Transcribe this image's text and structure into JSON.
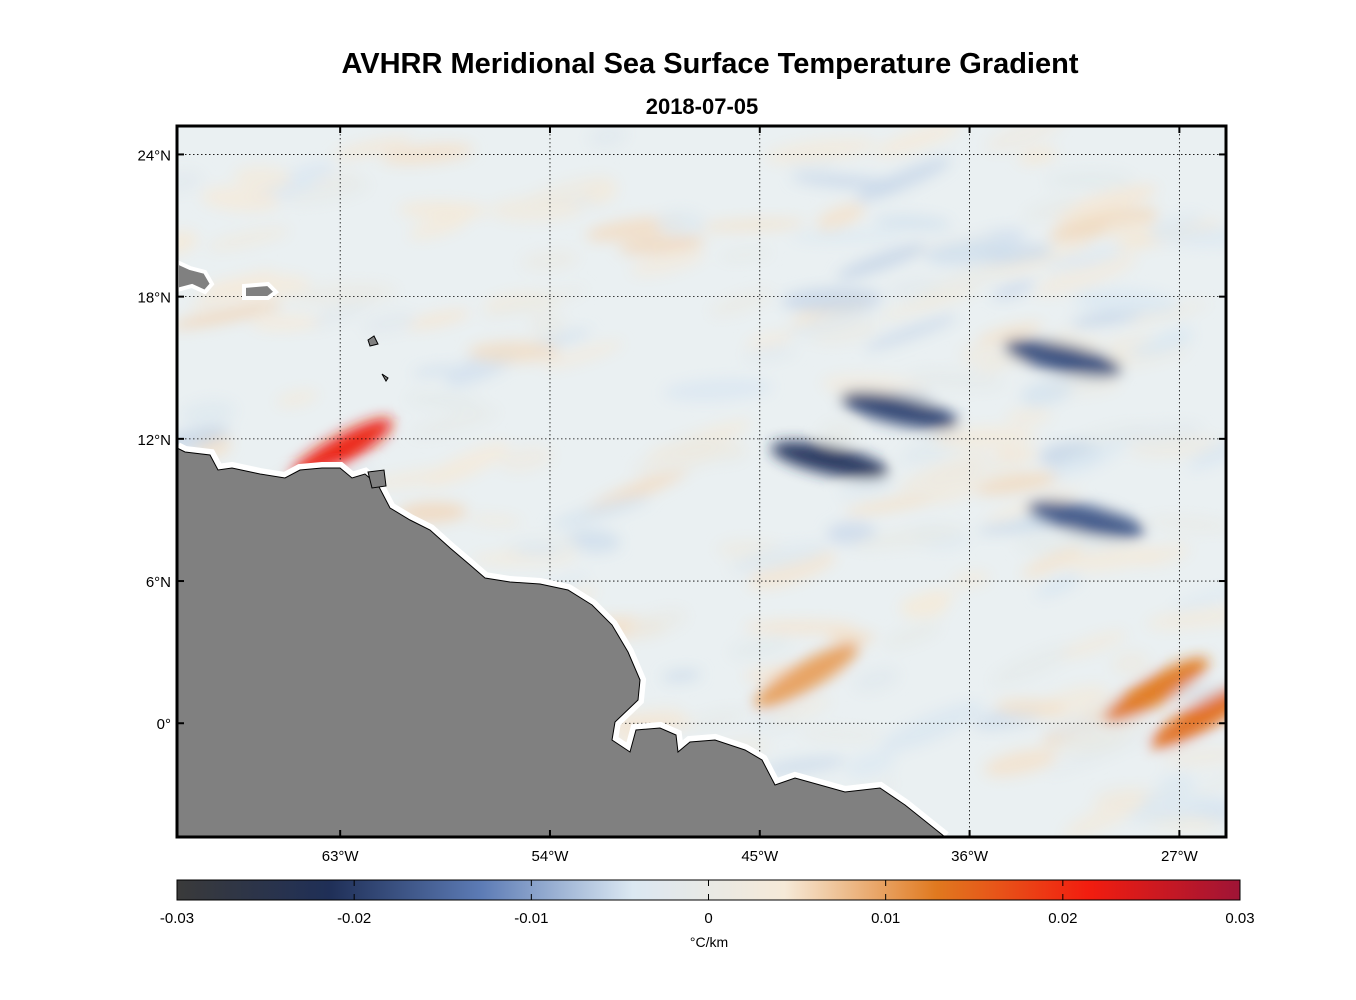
{
  "chart_data": {
    "type": "heatmap",
    "title": "AVHRR Meridional Sea Surface Temperature Gradient",
    "subtitle": "2018-07-05",
    "x_axis": {
      "ticks": [
        -63,
        -54,
        -45,
        -36,
        -27
      ],
      "tick_labels": [
        "63°W",
        "54°W",
        "45°W",
        "36°W",
        "27°W"
      ],
      "range": [
        -70,
        -25
      ]
    },
    "y_axis": {
      "ticks": [
        24,
        18,
        12,
        6,
        0
      ],
      "tick_labels": [
        "24°N",
        "18°N",
        "12°N",
        "6°N",
        "0°"
      ],
      "range": [
        -4.8,
        25.2
      ]
    },
    "colorbar": {
      "label": "°C/km",
      "range": [
        -0.03,
        0.03
      ],
      "ticks": [
        -0.03,
        -0.02,
        -0.01,
        0,
        0.01,
        0.02,
        0.03
      ],
      "tick_labels": [
        "-0.03",
        "-0.02",
        "-0.01",
        "0",
        "0.01",
        "0.02",
        "0.03"
      ],
      "colors": [
        "#3a3a3a",
        "#1f2f57",
        "#5c7bb5",
        "#dbe8f2",
        "#f6ead8",
        "#e0791f",
        "#f21d0f",
        "#9f1436"
      ]
    },
    "land_color": "#808080",
    "features": [
      {
        "name": "strong negative band",
        "lon": -42,
        "lat": 11.1,
        "value": -0.021
      },
      {
        "name": "negative band",
        "lon": -39,
        "lat": 13.2,
        "value": -0.019
      },
      {
        "name": "negative band",
        "lon": -32,
        "lat": 15.4,
        "value": -0.018
      },
      {
        "name": "negative band",
        "lon": -31,
        "lat": 8.6,
        "value": -0.017
      },
      {
        "name": "positive patch",
        "lon": -63,
        "lat": 11.5,
        "value": 0.022
      },
      {
        "name": "positive patch",
        "lon": -28,
        "lat": 1.4,
        "value": 0.013
      },
      {
        "name": "positive patch",
        "lon": -26,
        "lat": 0.3,
        "value": 0.014
      },
      {
        "name": "positive patch",
        "lon": -43,
        "lat": 2.0,
        "value": 0.01
      }
    ]
  }
}
